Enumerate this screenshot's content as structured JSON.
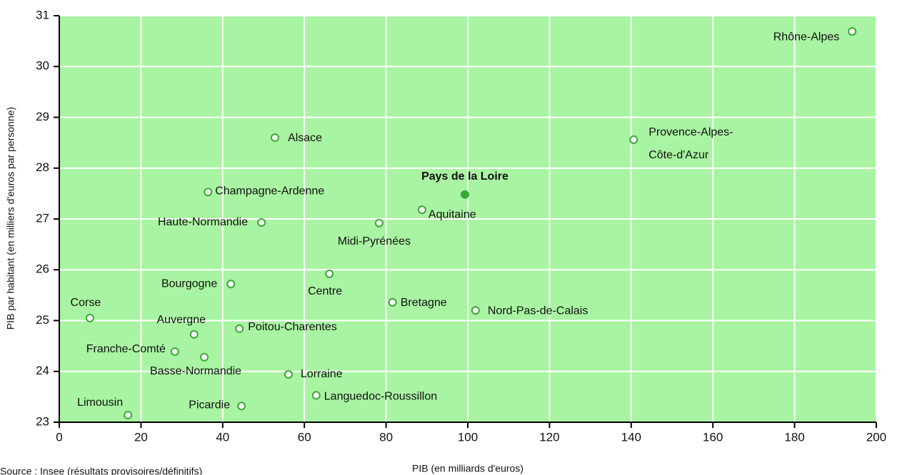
{
  "chart_data": {
    "type": "scatter",
    "x_label": "PIB (en milliards d'euros)",
    "y_label": "PIB par habitant (en milliers d'euros par personne)",
    "source": "Source : Insee (résultats provisoires/définitifs)",
    "labels": [
      "Rhône-Alpes",
      [
        "Provence-Alpes-",
        "Côte-d'Azur"
      ],
      "Alsace",
      "Pays de la Loire",
      "Aquitaine",
      "Champagne-Ardenne",
      "Haute-Normandie",
      "Midi-Pyrénées",
      "Centre",
      "Bourgogne",
      "Bretagne",
      "Nord-Pas-de-Calais",
      "Corse",
      "Auvergne",
      "Poitou-Charentes",
      "Franche-Comté",
      "Basse-Normandie",
      "Lorraine",
      "Languedoc-Roussillon",
      "Picardie",
      "Limousin"
    ],
    "x": [
      194.1,
      140.6,
      52.8,
      99.3,
      88.8,
      36.4,
      49.5,
      78.3,
      66.1,
      42.0,
      81.6,
      101.9,
      7.5,
      33.0,
      44.1,
      28.3,
      35.5,
      56.1,
      62.9,
      44.6,
      16.8
    ],
    "values": [
      30.69,
      28.56,
      28.6,
      27.48,
      27.18,
      27.53,
      26.93,
      26.92,
      25.92,
      25.72,
      25.36,
      25.2,
      25.05,
      24.73,
      24.84,
      24.39,
      24.28,
      23.94,
      23.53,
      23.32,
      23.14
    ],
    "highlight": "Pays de la Loire",
    "highlight_color": "#3aa935",
    "color": "#3aa935",
    "background": "#a9f4a2",
    "xlim": [
      0,
      200
    ],
    "xticks": [
      0,
      20,
      40,
      60,
      80,
      100,
      120,
      140,
      160,
      180,
      200
    ],
    "ylim": [
      23,
      31
    ],
    "yticks": [
      23,
      24,
      25,
      26,
      27,
      28,
      29,
      30,
      31
    ],
    "grid": true
  }
}
